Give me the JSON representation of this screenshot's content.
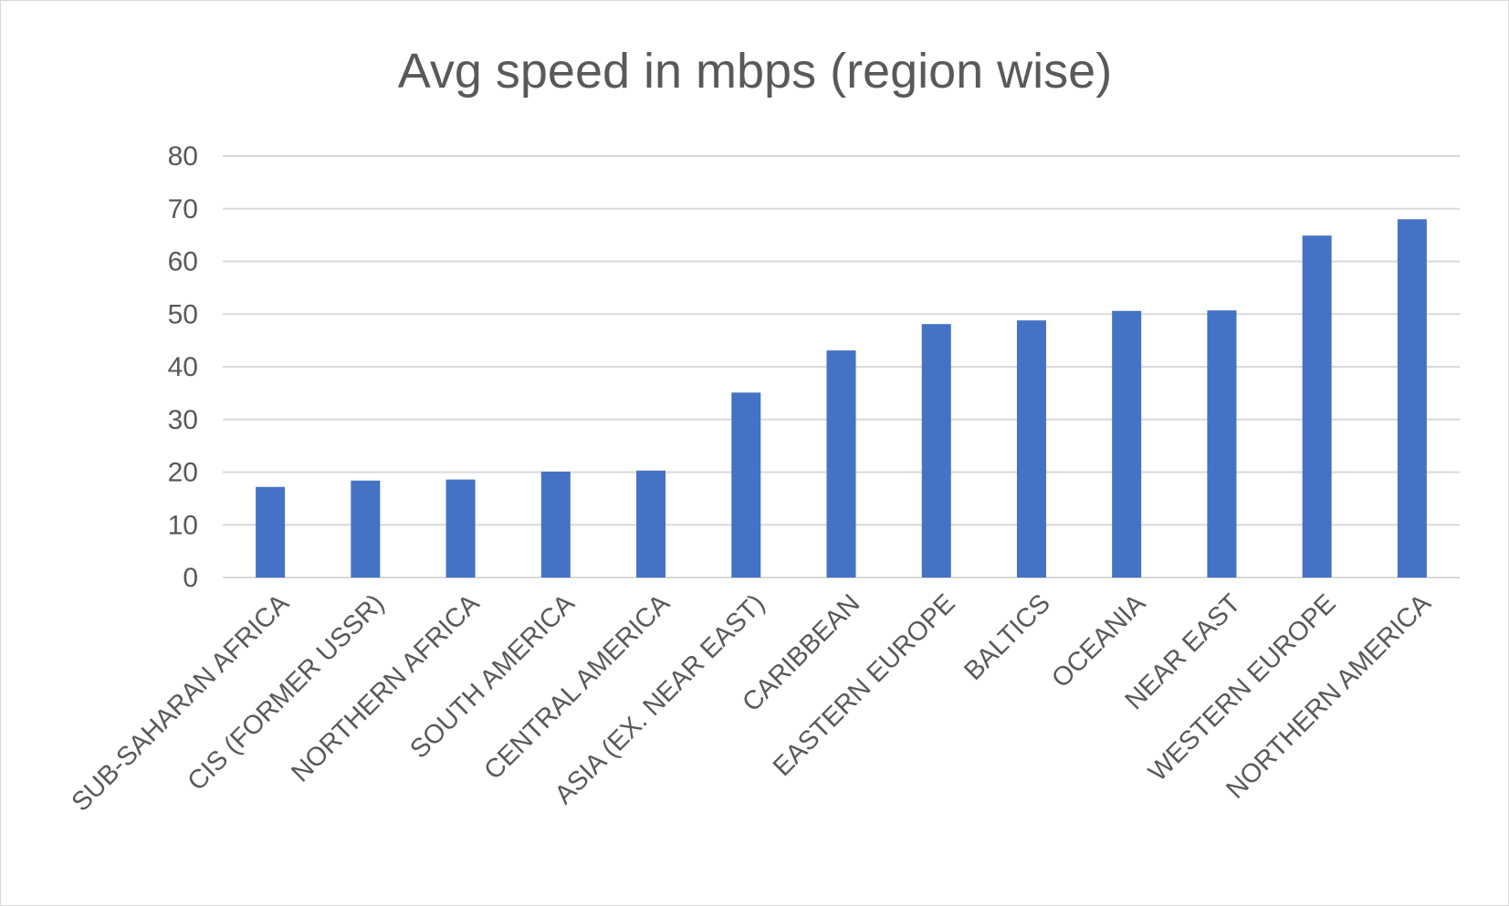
{
  "chart_data": {
    "type": "bar",
    "title": "Avg speed in mbps (region wise)",
    "xlabel": "",
    "ylabel": "",
    "categories": [
      "SUB-SAHARAN AFRICA",
      "CIS (FORMER USSR)",
      "NORTHERN AFRICA",
      "SOUTH AMERICA",
      "CENTRAL AMERICA",
      "ASIA (EX. NEAR EAST)",
      "CARIBBEAN",
      "EASTERN EUROPE",
      "BALTICS",
      "OCEANIA",
      "NEAR EAST",
      "WESTERN EUROPE",
      "NORTHERN AMERICA"
    ],
    "values": [
      17.2,
      18.4,
      18.6,
      20.1,
      20.3,
      35.1,
      43.1,
      48.1,
      48.8,
      50.6,
      50.7,
      64.9,
      68.0
    ],
    "ylim": [
      0,
      80
    ],
    "yticks": [
      0,
      10,
      20,
      30,
      40,
      50,
      60,
      70,
      80
    ],
    "grid": true,
    "legend": "none",
    "colors": {
      "bar": "#4472C4",
      "grid": "#d9d9d9",
      "text": "#595959"
    }
  }
}
